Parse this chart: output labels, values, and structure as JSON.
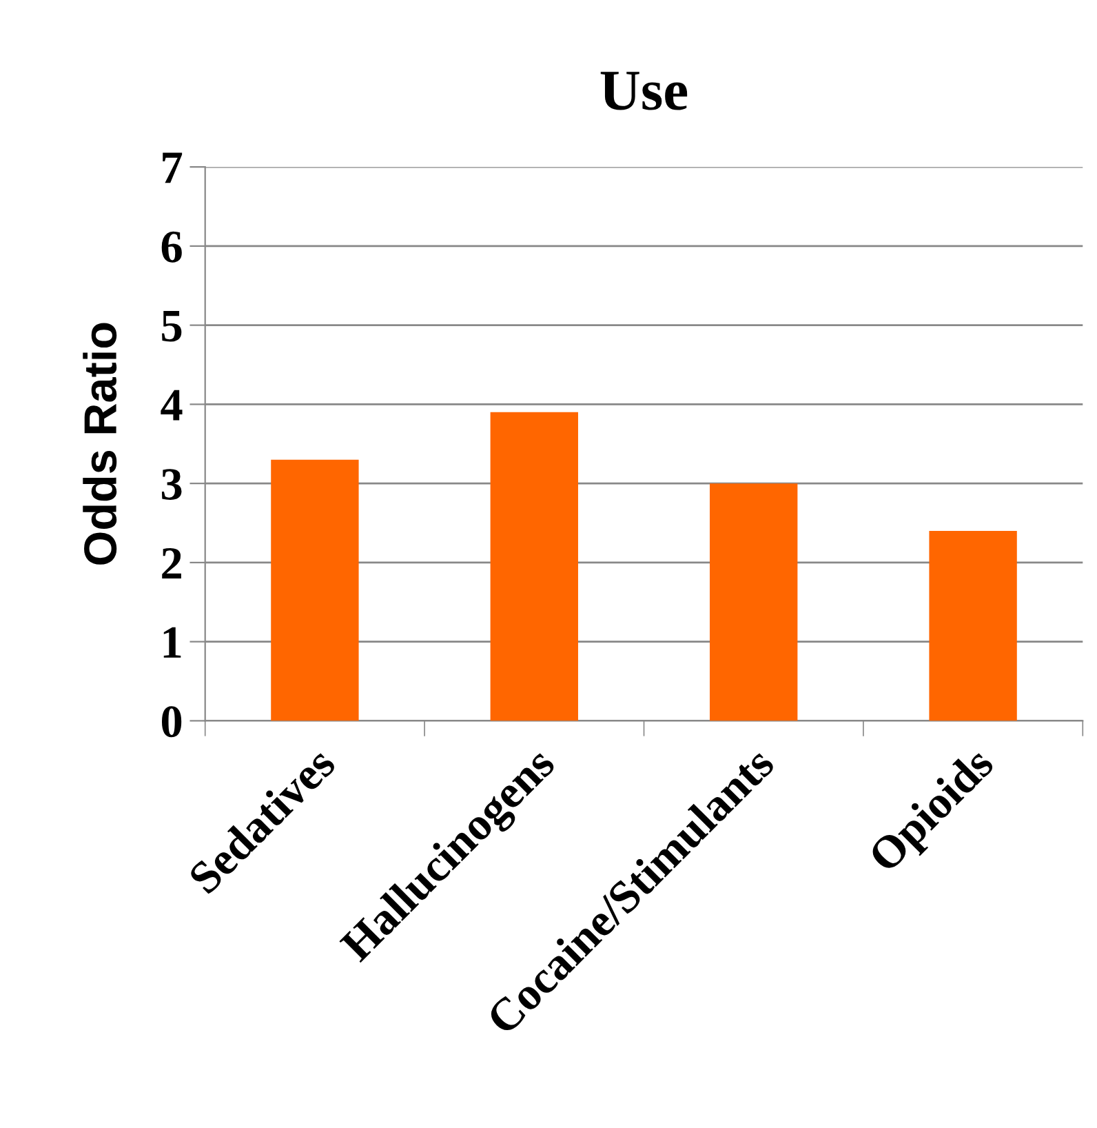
{
  "chart_data": {
    "type": "bar",
    "title": "Use",
    "ylabel": "Odds Ratio",
    "categories": [
      "Sedatives",
      "Hallucinogens",
      "Cocaine/Stimulants",
      "Opioids"
    ],
    "values": [
      3.3,
      3.9,
      3.0,
      2.4
    ],
    "color": "#ff6600",
    "ylim": [
      0,
      7
    ],
    "yticks": [
      0,
      1,
      2,
      3,
      4,
      5,
      6,
      7
    ],
    "grid": "y",
    "legend": false
  }
}
